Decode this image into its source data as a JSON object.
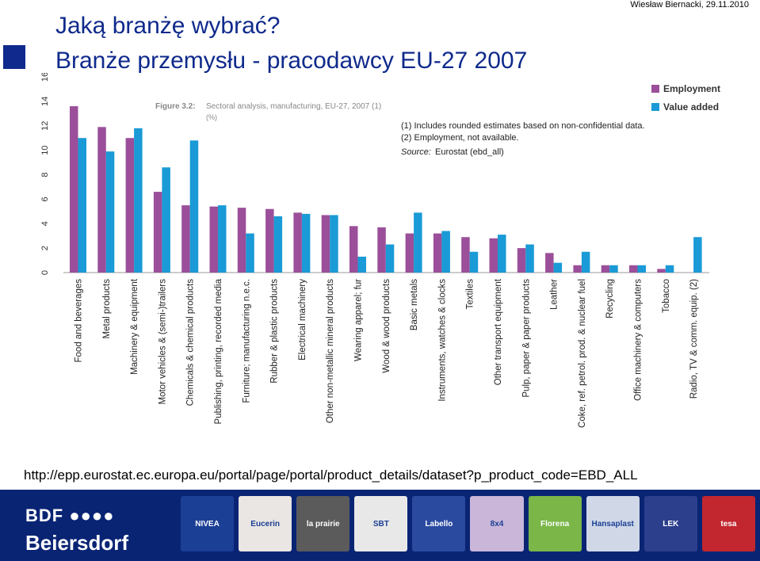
{
  "header": {
    "author_date": "Wiesław Biernacki, 29.11.2010",
    "title_line1": "Jaką branżę wybrać?",
    "title_line2": "Branże przemysłu - pracodawcy EU-27 2007"
  },
  "figure": {
    "label": "Figure 3.2:",
    "caption": "Sectoral analysis, manufacturing, EU-27, 2007 (1)",
    "unit": "(%)",
    "notes": [
      "(1) Includes rounded estimates based on non-confidential data.",
      "(2) Employment, not available."
    ],
    "source_label": "Source:",
    "source_value": "Eurostat (ebd_all)"
  },
  "chart_data": {
    "type": "bar",
    "y_ticks": [
      "0",
      "2",
      "4",
      "6",
      "8",
      "10",
      "12",
      "14",
      "16"
    ],
    "ylim": [
      0,
      16
    ],
    "grid": false,
    "legend_position": "top-right",
    "categories": [
      "Food and beverages",
      "Metal products",
      "Machinery & equipment",
      "Motor vehicles & (semi-)trailers",
      "Chemicals & chemical products",
      "Publishing, printing, recorded media",
      "Furniture; manufacturing n.e.c.",
      "Rubber & plastic products",
      "Electrical machinery",
      "Other non-metallic mineral products",
      "Wearing apparel; fur",
      "Wood & wood products",
      "Basic metals",
      "Instruments, watches & clocks",
      "Textiles",
      "Other transport equipment",
      "Pulp, paper & paper products",
      "Leather",
      "Coke, ref. petrol. prod. & nuclear fuel",
      "Recycling",
      "Office machinery & computers",
      "Tobacco",
      "Radio, TV & comm. equip. (2)"
    ],
    "series": [
      {
        "name": "Employment",
        "color": "#9b4f9a",
        "values": [
          13.6,
          11.9,
          11.0,
          6.6,
          5.5,
          5.4,
          5.3,
          5.2,
          4.9,
          4.7,
          3.8,
          3.7,
          3.2,
          3.2,
          2.9,
          2.8,
          2.0,
          1.6,
          0.6,
          0.6,
          0.6,
          0.3,
          null
        ]
      },
      {
        "name": "Value added",
        "color": "#1a9ad6",
        "values": [
          11.0,
          9.9,
          11.8,
          8.6,
          10.8,
          5.5,
          3.2,
          4.6,
          4.8,
          4.7,
          1.3,
          2.3,
          4.9,
          3.4,
          1.7,
          3.1,
          2.3,
          0.8,
          1.7,
          0.6,
          0.6,
          0.6,
          2.9
        ]
      }
    ]
  },
  "source_url": "http://epp.eurostat.ec.europa.eu/portal/page/portal/product_details/dataset?p_product_code=EBD_ALL",
  "footer": {
    "brand_top": "BDF ●●●●",
    "brand_name": "Beiersdorf",
    "products": [
      {
        "label": "NIVEA",
        "color": "#1b3f94"
      },
      {
        "label": "Eucerin",
        "color": "#e9e6e3"
      },
      {
        "label": "la prairie",
        "color": "#5b5b5b"
      },
      {
        "label": "SBT",
        "color": "#e8e8e8"
      },
      {
        "label": "Labello",
        "color": "#2a4aa0"
      },
      {
        "label": "8x4",
        "color": "#c9b6d9"
      },
      {
        "label": "Florena",
        "color": "#7ab648"
      },
      {
        "label": "Hansaplast",
        "color": "#d0d8e8"
      },
      {
        "label": "LEK",
        "color": "#2b3f8c"
      },
      {
        "label": "tesa",
        "color": "#c2262e"
      }
    ]
  }
}
